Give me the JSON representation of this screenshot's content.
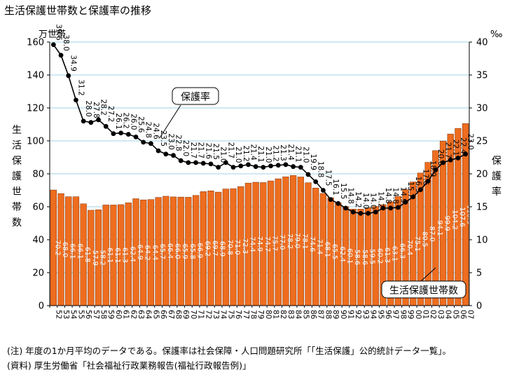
{
  "title": "生活保護世帯数と保護率の推移",
  "notes": {
    "note1": "(注) 年度の1か月平均のデータである。保護率は社会保障・人口問題研究所「「生活保護」公的統計データ一覧」。",
    "note2": "(資料) 厚生労働省「社会福祉行政業務報告(福祉行政報告例)」"
  },
  "chart_data": {
    "type": "bar",
    "categories": [
      "52",
      "53",
      "54",
      "55",
      "56",
      "57",
      "58",
      "59",
      "60",
      "61",
      "62",
      "63",
      "64",
      "65",
      "66",
      "67",
      "68",
      "69",
      "70",
      "71",
      "72",
      "73",
      "74",
      "75",
      "76",
      "77",
      "78",
      "79",
      "80",
      "81",
      "82",
      "83",
      "84",
      "85",
      "86",
      "87",
      "88",
      "89",
      "90",
      "91",
      "92",
      "93",
      "94",
      "95",
      "96",
      "97",
      "98",
      "99",
      "00",
      "01",
      "02",
      "03",
      "04",
      "05",
      "06",
      "07"
    ],
    "left_axis": {
      "unit": "万世帯",
      "label": "生活保護世帯数",
      "ylim": [
        0,
        160
      ],
      "ticks": [
        0,
        20,
        40,
        60,
        80,
        100,
        120,
        140,
        160
      ]
    },
    "right_axis": {
      "unit": "‰",
      "label": "保護率",
      "ylim": [
        0,
        40
      ],
      "ticks": [
        0,
        5,
        10,
        15,
        20,
        25,
        30,
        35,
        40
      ]
    },
    "grid": true,
    "series": [
      {
        "name": "生活保護世帯数",
        "type": "bar",
        "axis": "left",
        "color": "#ee6d1f",
        "values": [
          70.2,
          68.0,
          66.1,
          66.1,
          61.8,
          57.9,
          58.2,
          61.1,
          61.1,
          61.3,
          62.4,
          64.9,
          64.2,
          64.4,
          65.7,
          66.4,
          66.0,
          65.9,
          65.8,
          66.9,
          69.2,
          69.7,
          68.9,
          70.8,
          71.0,
          72.3,
          74.4,
          74.9,
          74.7,
          75.7,
          77.0,
          78.2,
          79.0,
          78.1,
          74.6,
          71.4,
          68.1,
          65.5,
          62.4,
          60.1,
          58.6,
          58.6,
          59.5,
          60.2,
          61.3,
          63.1,
          66.3,
          70.4,
          75.1,
          80.5,
          87.0,
          94.1,
          99.9,
          104.2,
          107.6,
          110.5
        ]
      },
      {
        "name": "保護率",
        "type": "line",
        "axis": "right",
        "color": "#000000",
        "values": [
          39.6,
          38.0,
          34.9,
          31.2,
          28.0,
          27.8,
          28.2,
          27.2,
          26.1,
          26.2,
          26.0,
          25.6,
          24.8,
          24.6,
          23.5,
          23.0,
          22.8,
          22.0,
          21.7,
          21.7,
          21.6,
          21.5,
          21.0,
          21.7,
          21.0,
          21.2,
          21.4,
          21.1,
          21.0,
          21.2,
          21.3,
          21.4,
          21.1,
          21.0,
          19.9,
          18.8,
          17.5,
          16.1,
          15.5,
          14.8,
          14.2,
          14.0,
          14.0,
          14.2,
          14.8,
          14.8,
          14.9,
          15.7,
          16.5,
          17.6,
          18.9,
          20.6,
          21.7,
          22.1,
          22.4,
          23.0
        ]
      }
    ],
    "annotations": {
      "line_callout": "保護率",
      "bar_callout": "生活保護世帯数"
    }
  }
}
